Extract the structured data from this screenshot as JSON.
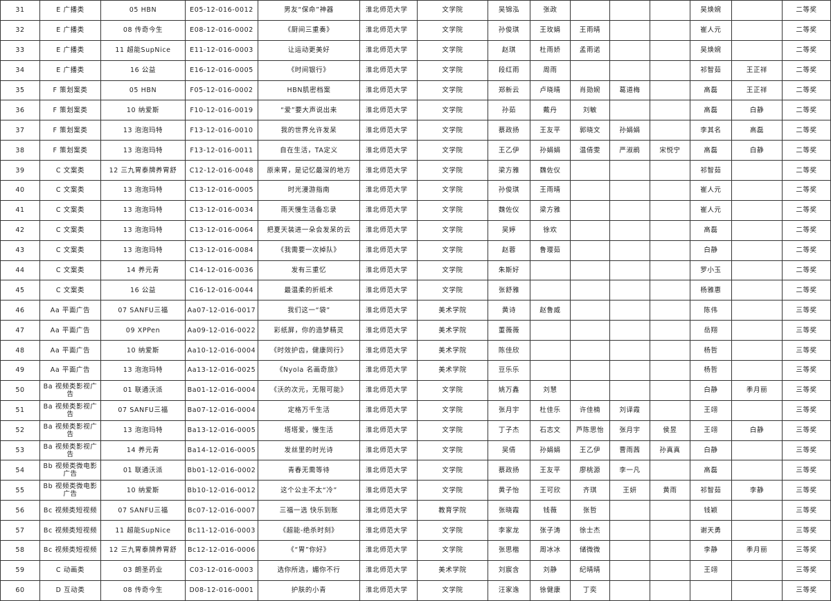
{
  "rows": [
    [
      "31",
      "E 广播类",
      "05 HBN",
      "E05-12-016-0012",
      "男友“保命”神器",
      "淮北师范大学",
      "文学院",
      "吴锦泓",
      "张政",
      "",
      "",
      "",
      "吴焕婉",
      "",
      "二等奖"
    ],
    [
      "32",
      "E 广播类",
      "08 传奇今生",
      "E08-12-016-0002",
      "《厨间三重奏》",
      "淮北师范大学",
      "文学院",
      "孙俊琪",
      "王玫娟",
      "王雨晴",
      "",
      "",
      "崔人元",
      "",
      "二等奖"
    ],
    [
      "33",
      "E 广播类",
      "11 超能SupNice",
      "E11-12-016-0003",
      "让运动更美好",
      "淮北师范大学",
      "文学院",
      "赵琪",
      "杜雨娇",
      "孟雨诺",
      "",
      "",
      "吴焕婉",
      "",
      "二等奖"
    ],
    [
      "34",
      "E 广播类",
      "16 公益",
      "E16-12-016-0005",
      "《时间银行》",
      "淮北师范大学",
      "文学院",
      "段红雨",
      "周雨",
      "",
      "",
      "",
      "祁智茹",
      "王正祥",
      "二等奖"
    ],
    [
      "35",
      "F 策划案类",
      "05 HBN",
      "F05-12-016-0002",
      "HBN肌密档案",
      "淮北师范大学",
      "文学院",
      "郑新云",
      "卢晓晴",
      "肖勋婉",
      "葛道梅",
      "",
      "高磊",
      "王正祥",
      "二等奖"
    ],
    [
      "36",
      "F 策划案类",
      "10 纳爱斯",
      "F10-12-016-0019",
      "“爱”要大声说出来",
      "淮北师范大学",
      "文学院",
      "孙茹",
      "戴丹",
      "刘敏",
      "",
      "",
      "高磊",
      "白静",
      "二等奖"
    ],
    [
      "37",
      "F 策划案类",
      "13 泡泡玛特",
      "F13-12-016-0010",
      "我的世界允许发呆",
      "淮北师范大学",
      "文学院",
      "蔡政扬",
      "王友平",
      "郭晓文",
      "孙娟娟",
      "",
      "李其名",
      "高磊",
      "二等奖"
    ],
    [
      "38",
      "F 策划案类",
      "13 泡泡玛特",
      "F13-12-016-0011",
      "自在生活，TA定义",
      "淮北师范大学",
      "文学院",
      "王乙伊",
      "孙娟娟",
      "温倩雯",
      "严淑鹃",
      "宋悦宁",
      "高磊",
      "白静",
      "二等奖"
    ],
    [
      "39",
      "C 文案类",
      "12 三九胃泰牌养胃舒",
      "C12-12-016-0048",
      "原来胃，是记忆最深的地方",
      "淮北师范大学",
      "文学院",
      "梁方雅",
      "魏佐仪",
      "",
      "",
      "",
      "祁智茹",
      "",
      "二等奖"
    ],
    [
      "40",
      "C 文案类",
      "13 泡泡玛特",
      "C13-12-016-0005",
      "时光漫游指南",
      "淮北师范大学",
      "文学院",
      "孙俊琪",
      "王雨晴",
      "",
      "",
      "",
      "崔人元",
      "",
      "二等奖"
    ],
    [
      "41",
      "C 文案类",
      "13 泡泡玛特",
      "C13-12-016-0034",
      "雨天慢生活备忘录",
      "淮北师范大学",
      "文学院",
      "魏佐仪",
      "梁方雅",
      "",
      "",
      "",
      "崔人元",
      "",
      "二等奖"
    ],
    [
      "42",
      "C 文案类",
      "13 泡泡玛特",
      "C13-12-016-0064",
      "把夏天装进一朵会发呆的云",
      "淮北师范大学",
      "文学院",
      "吴婷",
      "徐欢",
      "",
      "",
      "",
      "高磊",
      "",
      "二等奖"
    ],
    [
      "43",
      "C 文案类",
      "13 泡泡玛特",
      "C13-12-016-0084",
      "《我需要一次掉队》",
      "淮北师范大学",
      "文学院",
      "赵蓉",
      "鲁璎茹",
      "",
      "",
      "",
      "白静",
      "",
      "二等奖"
    ],
    [
      "44",
      "C 文案类",
      "14 养元青",
      "C14-12-016-0036",
      "发有三重忆",
      "淮北师范大学",
      "文学院",
      "朱斯好",
      "",
      "",
      "",
      "",
      "罗小玉",
      "",
      "二等奖"
    ],
    [
      "45",
      "C 文案类",
      "16 公益",
      "C16-12-016-0044",
      "最温柔的折纸术",
      "淮北师范大学",
      "文学院",
      "张舒雅",
      "",
      "",
      "",
      "",
      "杨雅惠",
      "",
      "二等奖"
    ],
    [
      "46",
      "Aa 平面广告",
      "07 SANFU三福",
      "Aa07-12-016-0017",
      "我们这一“袋”",
      "淮北师范大学",
      "美术学院",
      "黄诗",
      "赵鲁威",
      "",
      "",
      "",
      "陈伟",
      "",
      "三等奖"
    ],
    [
      "47",
      "Aa 平面广告",
      "09 XPPen",
      "Aa09-12-016-0022",
      "彩纸屏，你的造梦精灵",
      "淮北师范大学",
      "美术学院",
      "董薇薇",
      "",
      "",
      "",
      "",
      "岳翔",
      "",
      "三等奖"
    ],
    [
      "48",
      "Aa 平面广告",
      "10 纳爱斯",
      "Aa10-12-016-0004",
      "《时效护齿，健康同行》",
      "淮北师范大学",
      "美术学院",
      "陈佳欣",
      "",
      "",
      "",
      "",
      "杨哲",
      "",
      "三等奖"
    ],
    [
      "49",
      "Aa 平面广告",
      "13 泡泡玛特",
      "Aa13-12-016-0025",
      "《Nyola 名画奇旅》",
      "淮北师范大学",
      "美术学院",
      "豆乐乐",
      "",
      "",
      "",
      "",
      "杨哲",
      "",
      "三等奖"
    ],
    [
      "50",
      "Ba 视频类影视广告",
      "01 联通沃派",
      "Ba01-12-016-0004",
      "《沃的次元，无限可能》",
      "淮北师范大学",
      "文学院",
      "姚万鑫",
      "刘慧",
      "",
      "",
      "",
      "白静",
      "季月丽",
      "三等奖"
    ],
    [
      "51",
      "Ba 视频类影视广告",
      "07 SANFU三福",
      "Ba07-12-016-0004",
      "定格万千生活",
      "淮北师范大学",
      "文学院",
      "张月宇",
      "杜佳乐",
      "许佳楠",
      "刘译霞",
      "",
      "王翊",
      "",
      "三等奖"
    ],
    [
      "52",
      "Ba 视频类影视广告",
      "13 泡泡玛特",
      "Ba13-12-016-0005",
      "塔塔爱，慢生活",
      "淮北师范大学",
      "文学院",
      "丁子杰",
      "石志文",
      "芦陈思怡",
      "张月宇",
      "侯昱",
      "王翊",
      "白静",
      "三等奖"
    ],
    [
      "53",
      "Ba 视频类影视广告",
      "14 养元青",
      "Ba14-12-016-0005",
      "发丝里的时光诗",
      "淮北师范大学",
      "文学院",
      "吴倩",
      "孙娟娟",
      "王乙伊",
      "曹雨茜",
      "孙真真",
      "白静",
      "",
      "三等奖"
    ],
    [
      "54",
      "Bb 视频类微电影广告",
      "01 联通沃派",
      "Bb01-12-016-0002",
      "青春无需等待",
      "淮北师范大学",
      "文学院",
      "蔡政扬",
      "王友平",
      "廖桃源",
      "李一凡",
      "",
      "高磊",
      "",
      "三等奖"
    ],
    [
      "55",
      "Bb 视频类微电影广告",
      "10 纳爱斯",
      "Bb10-12-016-0012",
      "这个公主不太“冷”",
      "淮北师范大学",
      "文学院",
      "黄子怡",
      "王可欣",
      "齐琪",
      "王妍",
      "黄雨",
      "祁智茹",
      "李静",
      "三等奖"
    ],
    [
      "56",
      "Bc 视频类短视频",
      "07 SANFU三福",
      "Bc07-12-016-0007",
      "三福一选 快乐到账",
      "淮北师范大学",
      "教育学院",
      "张晓霞",
      "钱薇",
      "张哲",
      "",
      "",
      "钱颖",
      "",
      "三等奖"
    ],
    [
      "57",
      "Bc 视频类短视频",
      "11 超能SupNice",
      "Bc11-12-016-0003",
      "《超能-绝杀时刻》",
      "淮北师范大学",
      "文学院",
      "李家龙",
      "张子涛",
      "徐士杰",
      "",
      "",
      "谢天勇",
      "",
      "三等奖"
    ],
    [
      "58",
      "Bc 视频类短视频",
      "12 三九胃泰牌养胃舒",
      "Bc12-12-016-0006",
      "《“胃”你好》",
      "淮北师范大学",
      "文学院",
      "张思楷",
      "周冰冰",
      "储微微",
      "",
      "",
      "李静",
      "季月丽",
      "三等奖"
    ],
    [
      "59",
      "C 动画类",
      "03 朗圣药业",
      "C03-12-016-0003",
      "选你所选，媚你不行",
      "淮北师范大学",
      "美术学院",
      "刘宸含",
      "刘静",
      "纪晴晴",
      "",
      "",
      "王翊",
      "",
      "三等奖"
    ],
    [
      "60",
      "D 互动类",
      "08 传奇今生",
      "D08-12-016-0001",
      "护肤的小青",
      "淮北师范大学",
      "文学院",
      "汪家逸",
      "徐健康",
      "丁奕",
      "",
      "",
      "",
      "",
      "三等奖"
    ]
  ]
}
